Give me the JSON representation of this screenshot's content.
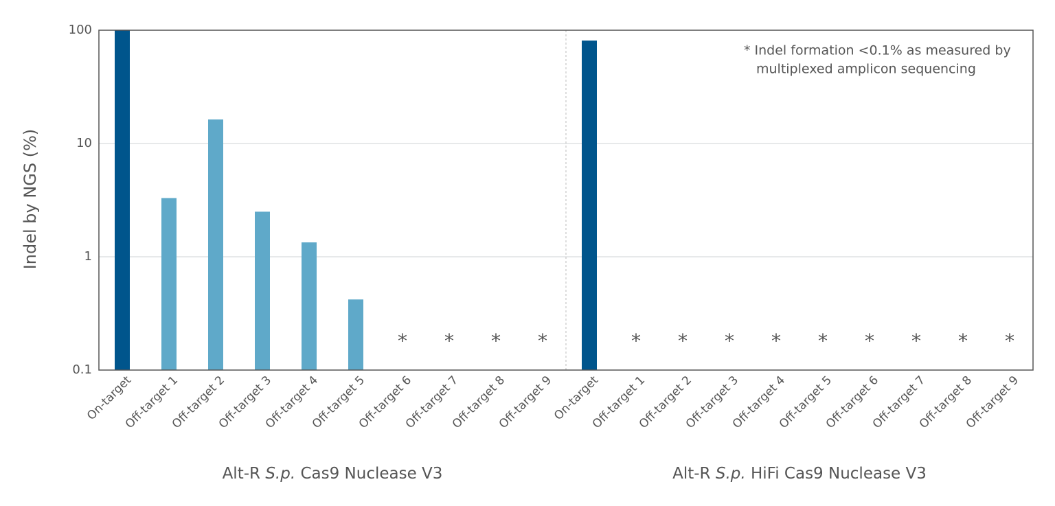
{
  "chart_data": {
    "type": "bar",
    "y_label": "Indel by NGS (%)",
    "note": [
      "* Indel formation <0.1% as measured by",
      "multiplexed amplicon sequencing"
    ],
    "y_scale": "log",
    "ylim": [
      0.1,
      100
    ],
    "yticks": [
      0.1,
      1,
      10,
      100
    ],
    "grid": true,
    "groups": [
      {
        "label": [
          "Alt-R ",
          "S.p.",
          " Cas9 Nuclease V3"
        ],
        "categories": [
          "On-target",
          "Off-target 1",
          "Off-target 2",
          "Off-target 3",
          "Off-target 4",
          "Off-target 5",
          "Off-target 6",
          "Off-target 7",
          "Off-target 8",
          "Off-target 9"
        ],
        "values": [
          100,
          3.3,
          16.3,
          2.5,
          1.34,
          0.42,
          null,
          null,
          null,
          null
        ],
        "value_labels": [
          null,
          null,
          null,
          null,
          null,
          null,
          "*",
          "*",
          "*",
          "*"
        ],
        "colors": [
          "#00558c",
          "#5fa9c9",
          "#5fa9c9",
          "#5fa9c9",
          "#5fa9c9",
          "#5fa9c9",
          "#5fa9c9",
          "#5fa9c9",
          "#5fa9c9",
          "#5fa9c9"
        ]
      },
      {
        "label": [
          "Alt-R ",
          "S.p.",
          " HiFi Cas9 Nuclease V3"
        ],
        "categories": [
          "On-target",
          "Off-target 1",
          "Off-target 2",
          "Off-target 3",
          "Off-target 4",
          "Off-target 5",
          "Off-target 6",
          "Off-target 7",
          "Off-target 8",
          "Off-target 9"
        ],
        "values": [
          81,
          null,
          null,
          null,
          null,
          null,
          null,
          null,
          null,
          null
        ],
        "value_labels": [
          null,
          "*",
          "*",
          "*",
          "*",
          "*",
          "*",
          "*",
          "*",
          "*"
        ],
        "colors": [
          "#00558c",
          "#5fa9c9",
          "#5fa9c9",
          "#5fa9c9",
          "#5fa9c9",
          "#5fa9c9",
          "#5fa9c9",
          "#5fa9c9",
          "#5fa9c9",
          "#5fa9c9"
        ]
      }
    ]
  }
}
